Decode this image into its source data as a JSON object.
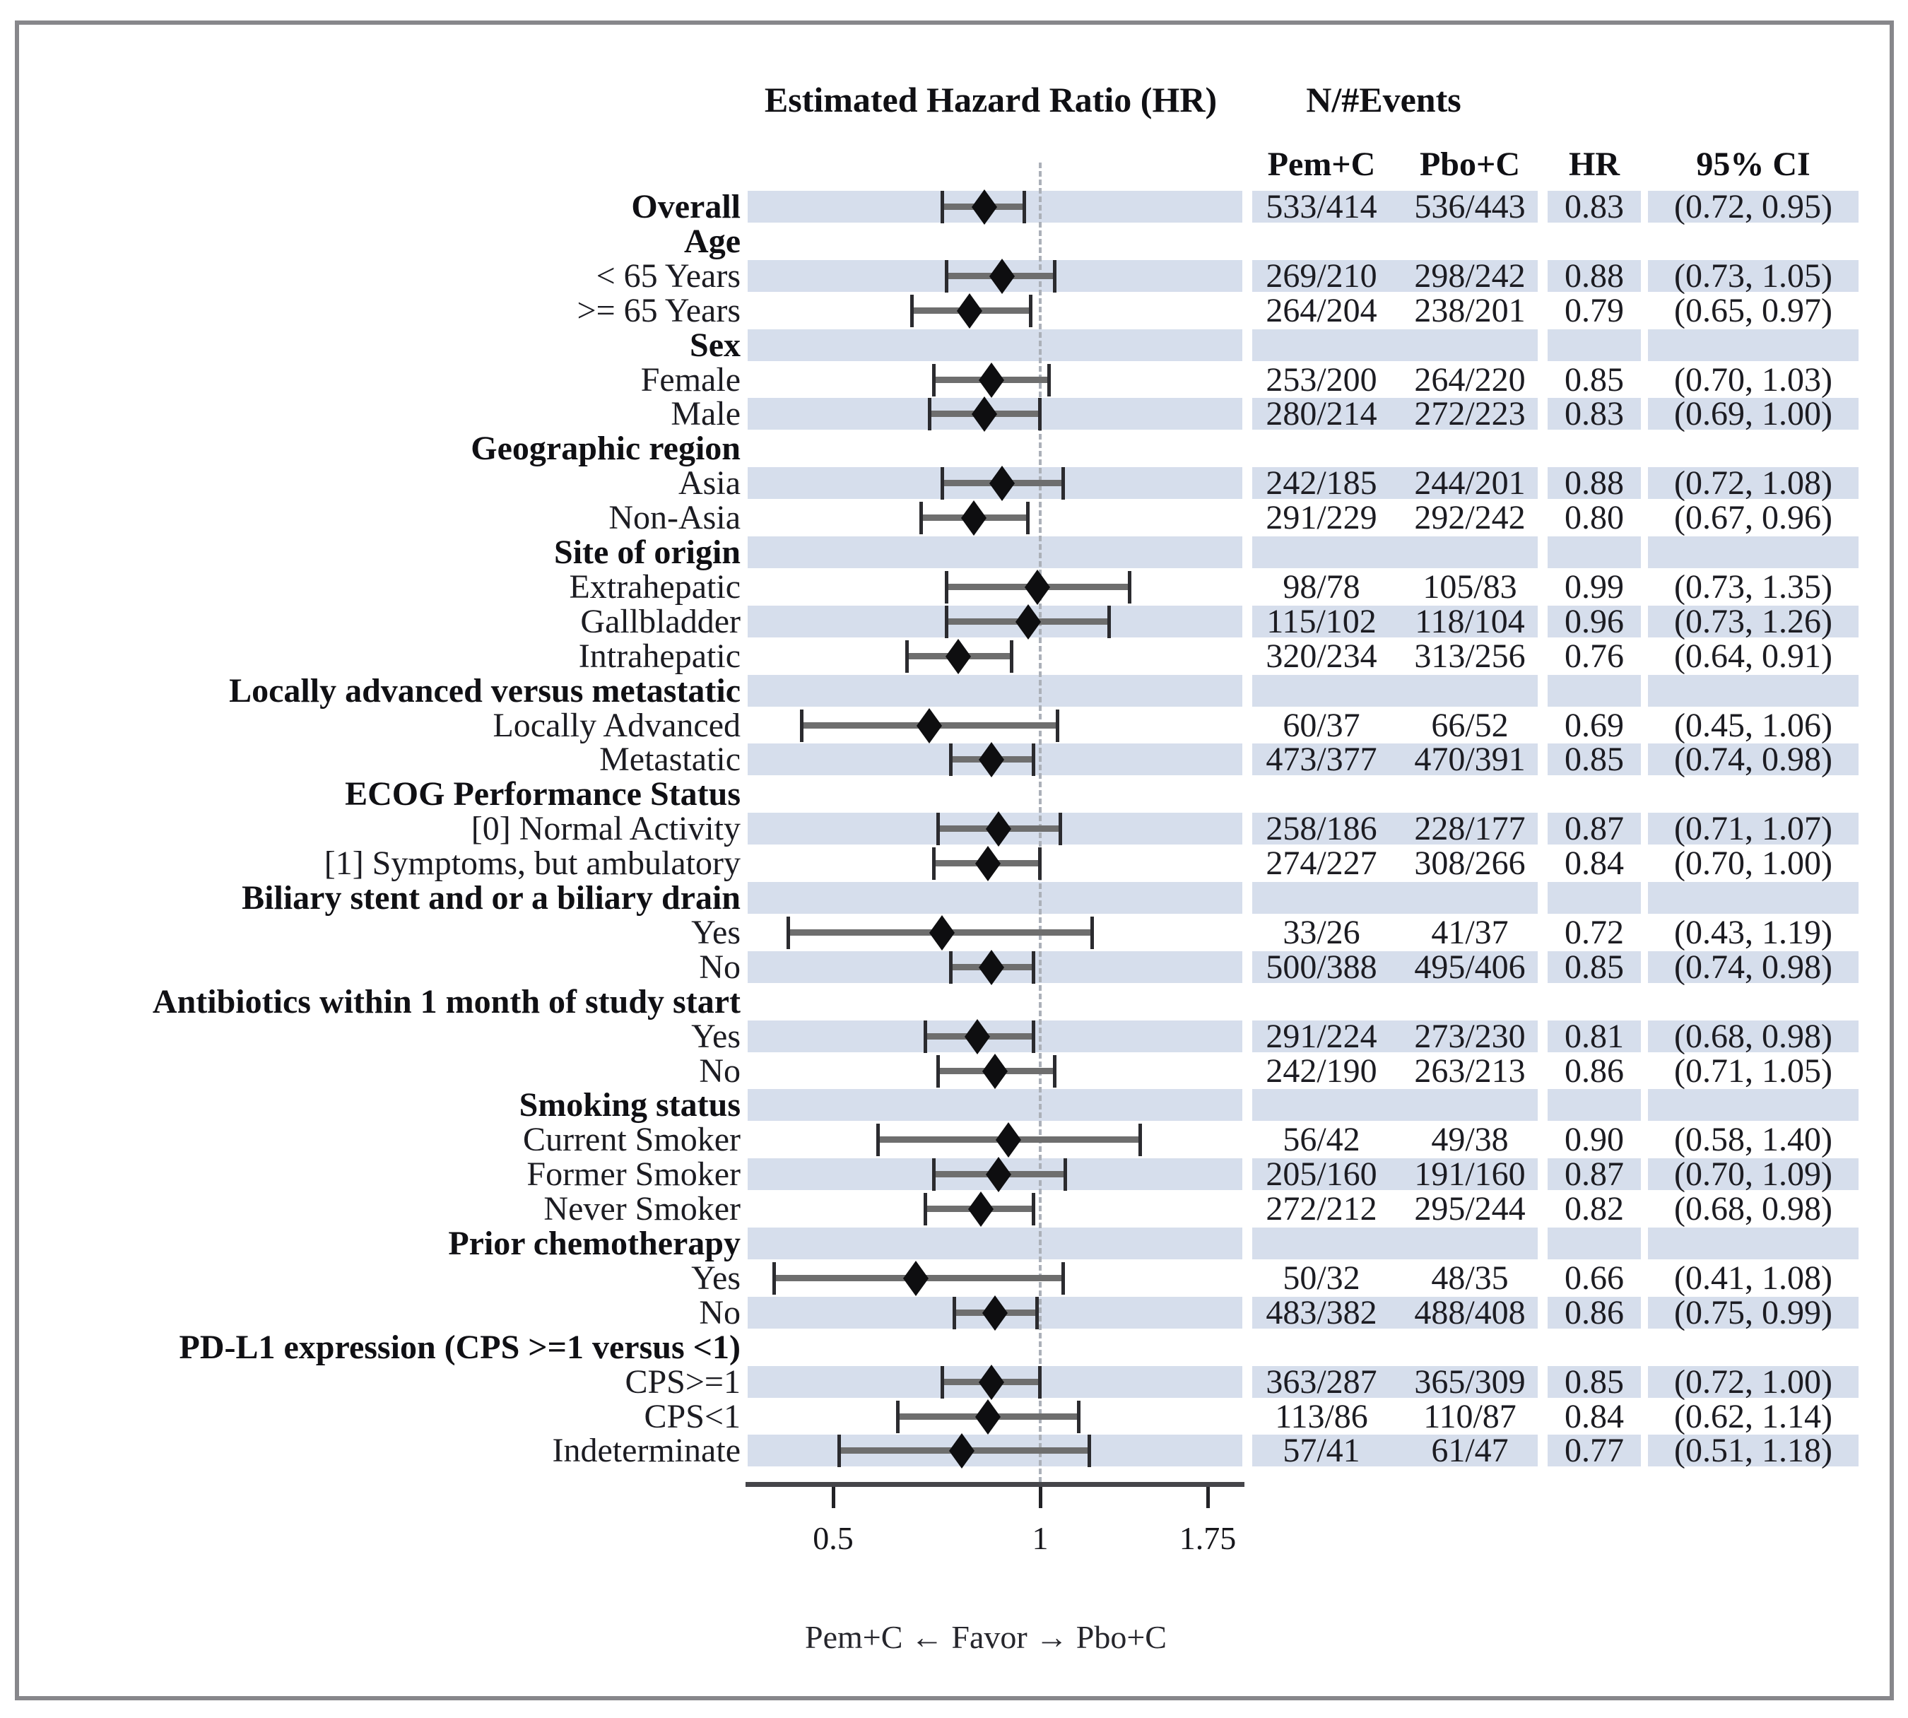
{
  "header": {
    "title": "Estimated Hazard Ratio (HR)",
    "events_title": "N/#Events",
    "columns": [
      "Pem+C",
      "Pbo+C",
      "HR",
      "95% CI"
    ]
  },
  "axis": {
    "scale": "log",
    "range": [
      0.37,
      1.95
    ],
    "reference_value": 1,
    "ticks": [
      "0.5",
      "1",
      "1.75"
    ],
    "tick_values": [
      0.5,
      1,
      1.75
    ],
    "favor_label": "Pem+C ← Favor → Pbo+C"
  },
  "colors": {
    "row_stripe": "#d6deec",
    "ci_line": "#6e6e6e",
    "ci_cap": "#2b2b2f",
    "diamond": "#0e0e10",
    "reference_line": "#abb0b8",
    "frame_border": "#87878b"
  },
  "chart_data": {
    "type": "forest",
    "title": "Estimated Hazard Ratio (HR)",
    "xlabel": "Pem+C ← Favor → Pbo+C",
    "x_ticks": [
      0.5,
      1,
      1.75
    ],
    "rows": [
      {
        "label": "Overall",
        "bold": true,
        "pem": "533/414",
        "pbo": "536/443",
        "hr": 0.83,
        "lo": 0.72,
        "hi": 0.95,
        "hr_text": "0.83",
        "ci_text": "(0.72, 0.95)"
      },
      {
        "label": "Age",
        "header": true
      },
      {
        "label": "< 65 Years",
        "pem": "269/210",
        "pbo": "298/242",
        "hr": 0.88,
        "lo": 0.73,
        "hi": 1.05,
        "hr_text": "0.88",
        "ci_text": "(0.73, 1.05)"
      },
      {
        "label": ">= 65 Years",
        "pem": "264/204",
        "pbo": "238/201",
        "hr": 0.79,
        "lo": 0.65,
        "hi": 0.97,
        "hr_text": "0.79",
        "ci_text": "(0.65, 0.97)"
      },
      {
        "label": "Sex",
        "header": true
      },
      {
        "label": "Female",
        "pem": "253/200",
        "pbo": "264/220",
        "hr": 0.85,
        "lo": 0.7,
        "hi": 1.03,
        "hr_text": "0.85",
        "ci_text": "(0.70, 1.03)"
      },
      {
        "label": "Male",
        "pem": "280/214",
        "pbo": "272/223",
        "hr": 0.83,
        "lo": 0.69,
        "hi": 1.0,
        "hr_text": "0.83",
        "ci_text": "(0.69, 1.00)"
      },
      {
        "label": "Geographic region",
        "header": true
      },
      {
        "label": "Asia",
        "pem": "242/185",
        "pbo": "244/201",
        "hr": 0.88,
        "lo": 0.72,
        "hi": 1.08,
        "hr_text": "0.88",
        "ci_text": "(0.72, 1.08)"
      },
      {
        "label": "Non-Asia",
        "pem": "291/229",
        "pbo": "292/242",
        "hr": 0.8,
        "lo": 0.67,
        "hi": 0.96,
        "hr_text": "0.80",
        "ci_text": "(0.67, 0.96)"
      },
      {
        "label": "Site of origin",
        "header": true
      },
      {
        "label": "Extrahepatic",
        "pem": "98/78",
        "pbo": "105/83",
        "hr": 0.99,
        "lo": 0.73,
        "hi": 1.35,
        "hr_text": "0.99",
        "ci_text": "(0.73, 1.35)"
      },
      {
        "label": "Gallbladder",
        "pem": "115/102",
        "pbo": "118/104",
        "hr": 0.96,
        "lo": 0.73,
        "hi": 1.26,
        "hr_text": "0.96",
        "ci_text": "(0.73, 1.26)"
      },
      {
        "label": "Intrahepatic",
        "pem": "320/234",
        "pbo": "313/256",
        "hr": 0.76,
        "lo": 0.64,
        "hi": 0.91,
        "hr_text": "0.76",
        "ci_text": "(0.64, 0.91)"
      },
      {
        "label": "Locally advanced versus metastatic",
        "header": true
      },
      {
        "label": "Locally Advanced",
        "pem": "60/37",
        "pbo": "66/52",
        "hr": 0.69,
        "lo": 0.45,
        "hi": 1.06,
        "hr_text": "0.69",
        "ci_text": "(0.45, 1.06)"
      },
      {
        "label": "Metastatic",
        "pem": "473/377",
        "pbo": "470/391",
        "hr": 0.85,
        "lo": 0.74,
        "hi": 0.98,
        "hr_text": "0.85",
        "ci_text": "(0.74, 0.98)"
      },
      {
        "label": "ECOG Performance Status",
        "header": true
      },
      {
        "label": "[0] Normal Activity",
        "pem": "258/186",
        "pbo": "228/177",
        "hr": 0.87,
        "lo": 0.71,
        "hi": 1.07,
        "hr_text": "0.87",
        "ci_text": "(0.71, 1.07)"
      },
      {
        "label": "[1] Symptoms, but ambulatory",
        "pem": "274/227",
        "pbo": "308/266",
        "hr": 0.84,
        "lo": 0.7,
        "hi": 1.0,
        "hr_text": "0.84",
        "ci_text": "(0.70, 1.00)"
      },
      {
        "label": "Biliary stent and or a biliary drain",
        "header": true
      },
      {
        "label": "Yes",
        "pem": "33/26",
        "pbo": "41/37",
        "hr": 0.72,
        "lo": 0.43,
        "hi": 1.19,
        "hr_text": "0.72",
        "ci_text": "(0.43, 1.19)"
      },
      {
        "label": "No",
        "pem": "500/388",
        "pbo": "495/406",
        "hr": 0.85,
        "lo": 0.74,
        "hi": 0.98,
        "hr_text": "0.85",
        "ci_text": "(0.74, 0.98)"
      },
      {
        "label": "Antibiotics within 1 month of study start",
        "header": true
      },
      {
        "label": "Yes",
        "pem": "291/224",
        "pbo": "273/230",
        "hr": 0.81,
        "lo": 0.68,
        "hi": 0.98,
        "hr_text": "0.81",
        "ci_text": "(0.68, 0.98)"
      },
      {
        "label": "No",
        "pem": "242/190",
        "pbo": "263/213",
        "hr": 0.86,
        "lo": 0.71,
        "hi": 1.05,
        "hr_text": "0.86",
        "ci_text": "(0.71, 1.05)"
      },
      {
        "label": "Smoking status",
        "header": true
      },
      {
        "label": "Current Smoker",
        "pem": "56/42",
        "pbo": "49/38",
        "hr": 0.9,
        "lo": 0.58,
        "hi": 1.4,
        "hr_text": "0.90",
        "ci_text": "(0.58, 1.40)"
      },
      {
        "label": "Former Smoker",
        "pem": "205/160",
        "pbo": "191/160",
        "hr": 0.87,
        "lo": 0.7,
        "hi": 1.09,
        "hr_text": "0.87",
        "ci_text": "(0.70, 1.09)"
      },
      {
        "label": "Never Smoker",
        "pem": "272/212",
        "pbo": "295/244",
        "hr": 0.82,
        "lo": 0.68,
        "hi": 0.98,
        "hr_text": "0.82",
        "ci_text": "(0.68, 0.98)"
      },
      {
        "label": "Prior chemotherapy",
        "header": true
      },
      {
        "label": "Yes",
        "pem": "50/32",
        "pbo": "48/35",
        "hr": 0.66,
        "lo": 0.41,
        "hi": 1.08,
        "hr_text": "0.66",
        "ci_text": "(0.41, 1.08)"
      },
      {
        "label": "No",
        "pem": "483/382",
        "pbo": "488/408",
        "hr": 0.86,
        "lo": 0.75,
        "hi": 0.99,
        "hr_text": "0.86",
        "ci_text": "(0.75, 0.99)"
      },
      {
        "label": "PD-L1 expression (CPS >=1 versus <1)",
        "header": true
      },
      {
        "label": "CPS>=1",
        "pem": "363/287",
        "pbo": "365/309",
        "hr": 0.85,
        "lo": 0.72,
        "hi": 1.0,
        "hr_text": "0.85",
        "ci_text": "(0.72, 1.00)"
      },
      {
        "label": "CPS<1",
        "pem": "113/86",
        "pbo": "110/87",
        "hr": 0.84,
        "lo": 0.62,
        "hi": 1.14,
        "hr_text": "0.84",
        "ci_text": "(0.62, 1.14)"
      },
      {
        "label": "Indeterminate",
        "pem": "57/41",
        "pbo": "61/47",
        "hr": 0.77,
        "lo": 0.51,
        "hi": 1.18,
        "hr_text": "0.77",
        "ci_text": "(0.51, 1.18)"
      }
    ]
  }
}
